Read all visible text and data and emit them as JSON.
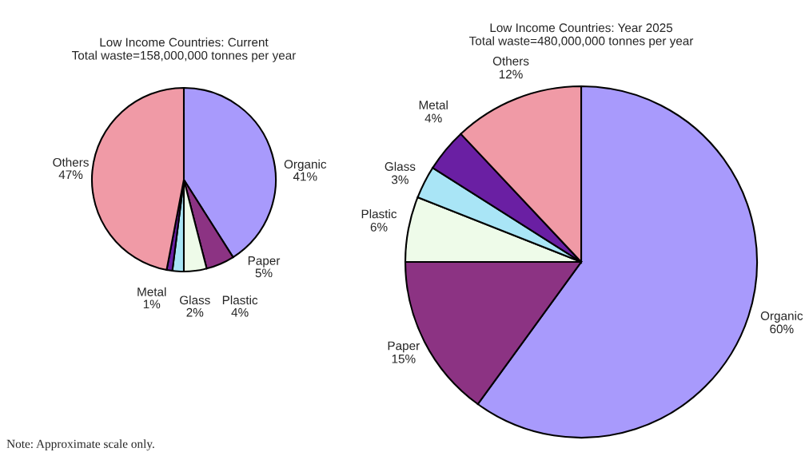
{
  "chart_data": [
    {
      "type": "pie",
      "title": "Low Income Countries: Current",
      "subtitle": "Total waste=158,000,000 tonnes per year",
      "categories": [
        "Organic",
        "Paper",
        "Plastic",
        "Glass",
        "Metal",
        "Others"
      ],
      "values": [
        41,
        5,
        4,
        2,
        1,
        47
      ],
      "colors": [
        "#a89afc",
        "#8c3383",
        "#eefbe9",
        "#a9e5f6",
        "#6a1fa3",
        "#f09aa6"
      ],
      "value_labels": [
        "41%",
        "5%",
        "4%",
        "2%",
        "1%",
        "47%"
      ],
      "annotations": [
        "Note: Approximate scale only."
      ]
    },
    {
      "type": "pie",
      "title": "Low Income Countries: Year 2025",
      "subtitle": "Total waste=480,000,000 tonnes per year",
      "categories": [
        "Organic",
        "Paper",
        "Plastic",
        "Glass",
        "Metal",
        "Others"
      ],
      "values": [
        60,
        15,
        6,
        3,
        4,
        12
      ],
      "colors": [
        "#a89afc",
        "#8c3383",
        "#eefbe9",
        "#a9e5f6",
        "#6a1fa3",
        "#f09aa6"
      ],
      "value_labels": [
        "60%",
        "15%",
        "6%",
        "3%",
        "4%",
        "12%"
      ]
    }
  ]
}
